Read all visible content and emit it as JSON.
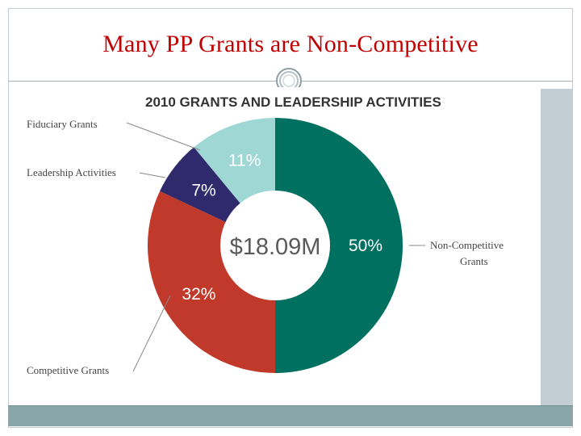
{
  "slide": {
    "title": "Many PP Grants are Non-Competitive"
  },
  "chart_data": {
    "type": "pie",
    "title": "2010 GRANTS AND LEADERSHIP ACTIVITIES",
    "center_label": "$18.09M",
    "donut": true,
    "slices": [
      {
        "label": "Non-Competitive Grants",
        "value": 50,
        "value_label": "50%",
        "color": "#007060"
      },
      {
        "label": "Competitive Grants",
        "value": 32,
        "value_label": "32%",
        "color": "#c0392b"
      },
      {
        "label": "Leadership Activities",
        "value": 7,
        "value_label": "7%",
        "color": "#2e2a6b"
      },
      {
        "label": "Fiduciary Grants",
        "value": 11,
        "value_label": "11%",
        "color": "#9fd7d5"
      }
    ],
    "callouts": {
      "non_competitive_line1": "Non-Competitive",
      "non_competitive_line2": "Grants",
      "competitive": "Competitive Grants",
      "leadership": "Leadership Activities",
      "fiduciary": "Fiduciary Grants"
    }
  }
}
